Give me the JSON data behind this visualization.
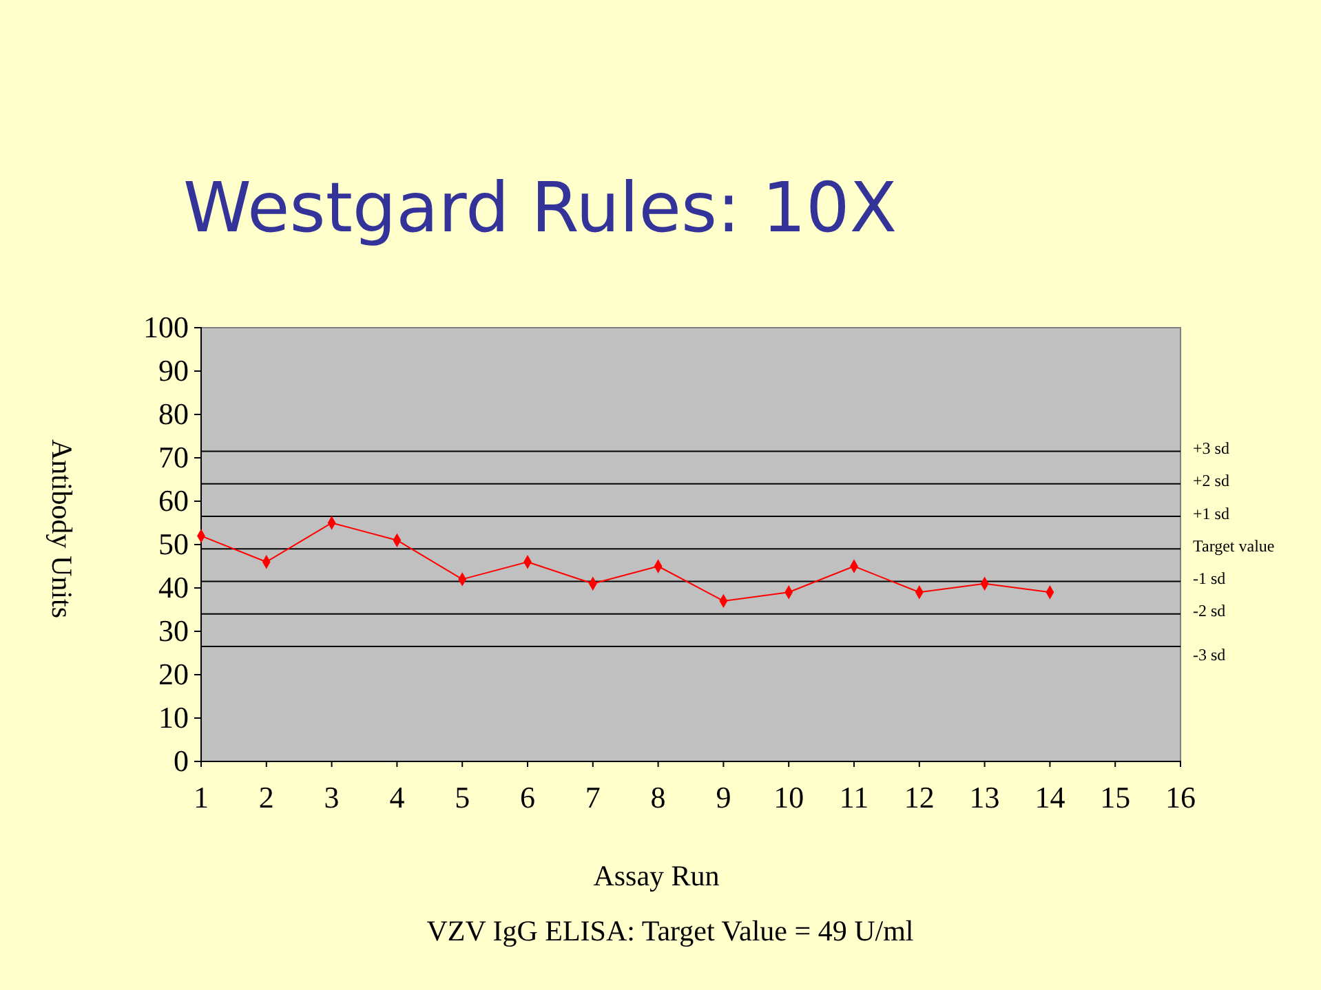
{
  "chart_data": {
    "type": "line",
    "title": "Westgard Rules: 10X",
    "xlabel": "Assay Run",
    "ylabel": "Antibody Units",
    "x": [
      1,
      2,
      3,
      4,
      5,
      6,
      7,
      8,
      9,
      10,
      11,
      12,
      13,
      14
    ],
    "series": [
      {
        "color": "#ff0000",
        "values": [
          52,
          46,
          55,
          51,
          42,
          46,
          41,
          45,
          37,
          39,
          45,
          39,
          41,
          39
        ]
      }
    ],
    "xlim": [
      1,
      16
    ],
    "xticks": [
      1,
      2,
      3,
      4,
      5,
      6,
      7,
      8,
      9,
      10,
      11,
      12,
      13,
      14,
      15,
      16
    ],
    "ylim": [
      0,
      100
    ],
    "yticks": [
      0,
      10,
      20,
      30,
      40,
      50,
      60,
      70,
      80,
      90,
      100
    ],
    "grid": false,
    "marker": "diamond",
    "line_style": "solid",
    "ref_lines": [
      {
        "axis": "y",
        "value": 71.5,
        "label": "+3 sd",
        "color": "#000000"
      },
      {
        "axis": "y",
        "value": 64,
        "label": "+2 sd",
        "color": "#000000"
      },
      {
        "axis": "y",
        "value": 56.5,
        "label": "+1 sd",
        "color": "#000000"
      },
      {
        "axis": "y",
        "value": 49,
        "label": "Target value",
        "color": "#000000"
      },
      {
        "axis": "y",
        "value": 41.5,
        "label": "-1 sd",
        "color": "#000000"
      },
      {
        "axis": "y",
        "value": 34,
        "label": "-2 sd",
        "color": "#000000"
      },
      {
        "axis": "y",
        "value": 26.5,
        "label": "-3 sd",
        "color": "#000000"
      }
    ],
    "annotations": [
      "VZV IgG ELISA: Target Value = 49 U/ml"
    ]
  }
}
